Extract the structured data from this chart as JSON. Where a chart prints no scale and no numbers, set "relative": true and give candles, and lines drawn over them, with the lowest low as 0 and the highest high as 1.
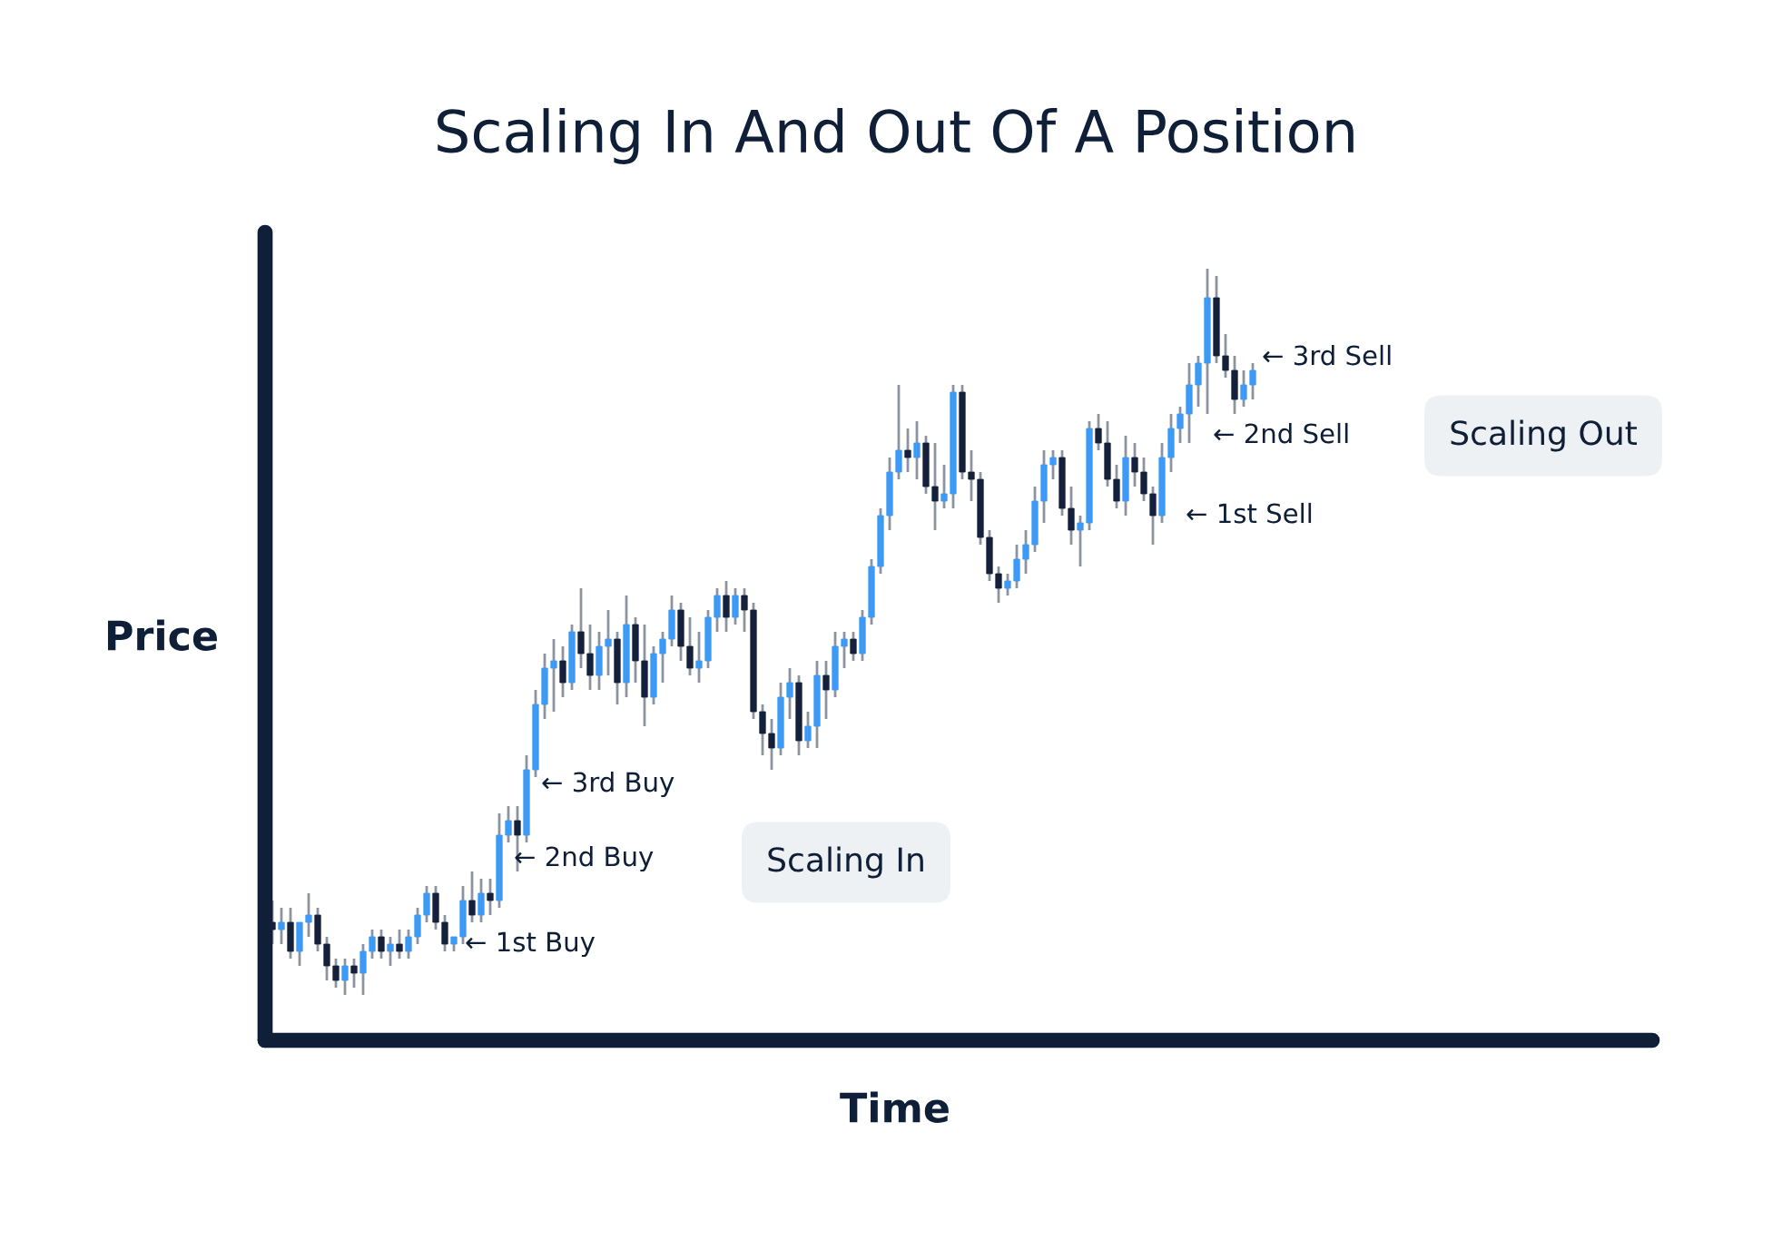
{
  "chart_data": {
    "type": "candlestick",
    "title": "Scaling In And Out Of A Position",
    "xlabel": "Time",
    "ylabel": "Price",
    "relative": true,
    "categories": [
      null,
      null,
      null,
      null,
      null,
      null,
      null,
      null,
      null,
      null,
      null,
      null,
      null,
      null,
      null,
      null,
      null,
      null,
      null,
      null,
      null,
      null,
      null,
      null,
      null,
      null,
      null,
      null,
      null,
      null,
      null,
      null,
      null,
      null,
      null,
      null,
      null,
      null,
      null,
      null,
      null,
      null,
      null,
      null,
      null,
      null,
      null,
      null,
      null,
      null,
      null,
      null,
      null,
      null,
      null,
      null,
      null,
      null,
      null,
      null,
      null,
      null,
      null,
      null,
      null,
      null,
      null,
      null,
      null,
      null,
      null,
      null,
      null,
      null,
      null,
      null,
      null,
      null,
      null,
      null,
      null,
      null,
      null,
      null,
      null,
      null,
      null,
      null,
      null,
      null,
      null,
      null,
      null,
      null,
      null,
      null,
      null,
      null,
      null,
      null,
      null,
      null,
      null,
      null,
      null,
      null,
      null,
      null,
      null
    ],
    "ohlc": [
      [
        0.1,
        0.13,
        0.07,
        0.09
      ],
      [
        0.09,
        0.12,
        0.07,
        0.1
      ],
      [
        0.1,
        0.12,
        0.05,
        0.06
      ],
      [
        0.06,
        0.1,
        0.04,
        0.1
      ],
      [
        0.1,
        0.14,
        0.08,
        0.11
      ],
      [
        0.11,
        0.12,
        0.06,
        0.07
      ],
      [
        0.07,
        0.08,
        0.02,
        0.04
      ],
      [
        0.04,
        0.05,
        0.01,
        0.02
      ],
      [
        0.02,
        0.05,
        0.0,
        0.04
      ],
      [
        0.04,
        0.05,
        0.01,
        0.03
      ],
      [
        0.03,
        0.07,
        0.0,
        0.06
      ],
      [
        0.06,
        0.09,
        0.05,
        0.08
      ],
      [
        0.08,
        0.09,
        0.05,
        0.06
      ],
      [
        0.06,
        0.08,
        0.04,
        0.07
      ],
      [
        0.07,
        0.09,
        0.05,
        0.06
      ],
      [
        0.06,
        0.09,
        0.05,
        0.08
      ],
      [
        0.08,
        0.12,
        0.07,
        0.11
      ],
      [
        0.11,
        0.15,
        0.1,
        0.14
      ],
      [
        0.14,
        0.15,
        0.09,
        0.1
      ],
      [
        0.1,
        0.11,
        0.06,
        0.07
      ],
      [
        0.07,
        0.08,
        0.06,
        0.08
      ],
      [
        0.08,
        0.15,
        0.07,
        0.13
      ],
      [
        0.13,
        0.17,
        0.1,
        0.11
      ],
      [
        0.11,
        0.16,
        0.1,
        0.14
      ],
      [
        0.14,
        0.16,
        0.11,
        0.13
      ],
      [
        0.13,
        0.25,
        0.12,
        0.22
      ],
      [
        0.22,
        0.26,
        0.21,
        0.24
      ],
      [
        0.24,
        0.26,
        0.17,
        0.22
      ],
      [
        0.22,
        0.33,
        0.21,
        0.31
      ],
      [
        0.31,
        0.42,
        0.3,
        0.4
      ],
      [
        0.4,
        0.47,
        0.38,
        0.45
      ],
      [
        0.45,
        0.49,
        0.39,
        0.46
      ],
      [
        0.46,
        0.48,
        0.41,
        0.43
      ],
      [
        0.43,
        0.51,
        0.42,
        0.5
      ],
      [
        0.5,
        0.56,
        0.45,
        0.47
      ],
      [
        0.47,
        0.51,
        0.42,
        0.44
      ],
      [
        0.44,
        0.5,
        0.42,
        0.48
      ],
      [
        0.48,
        0.53,
        0.44,
        0.49
      ],
      [
        0.49,
        0.5,
        0.4,
        0.43
      ],
      [
        0.43,
        0.55,
        0.41,
        0.51
      ],
      [
        0.51,
        0.52,
        0.43,
        0.46
      ],
      [
        0.46,
        0.51,
        0.37,
        0.41
      ],
      [
        0.41,
        0.48,
        0.4,
        0.47
      ],
      [
        0.47,
        0.5,
        0.43,
        0.49
      ],
      [
        0.49,
        0.55,
        0.48,
        0.53
      ],
      [
        0.53,
        0.54,
        0.46,
        0.48
      ],
      [
        0.48,
        0.52,
        0.44,
        0.45
      ],
      [
        0.45,
        0.5,
        0.43,
        0.46
      ],
      [
        0.46,
        0.53,
        0.45,
        0.52
      ],
      [
        0.52,
        0.56,
        0.5,
        0.55
      ],
      [
        0.55,
        0.57,
        0.5,
        0.52
      ],
      [
        0.52,
        0.56,
        0.51,
        0.55
      ],
      [
        0.55,
        0.56,
        0.5,
        0.53
      ],
      [
        0.53,
        0.54,
        0.38,
        0.39
      ],
      [
        0.39,
        0.4,
        0.33,
        0.36
      ],
      [
        0.36,
        0.38,
        0.31,
        0.34
      ],
      [
        0.34,
        0.43,
        0.33,
        0.41
      ],
      [
        0.41,
        0.45,
        0.38,
        0.43
      ],
      [
        0.43,
        0.44,
        0.33,
        0.35
      ],
      [
        0.35,
        0.39,
        0.34,
        0.37
      ],
      [
        0.37,
        0.46,
        0.34,
        0.44
      ],
      [
        0.44,
        0.46,
        0.38,
        0.42
      ],
      [
        0.42,
        0.5,
        0.41,
        0.48
      ],
      [
        0.48,
        0.5,
        0.45,
        0.49
      ],
      [
        0.49,
        0.5,
        0.46,
        0.47
      ],
      [
        0.47,
        0.53,
        0.46,
        0.52
      ],
      [
        0.52,
        0.6,
        0.51,
        0.59
      ],
      [
        0.59,
        0.67,
        0.58,
        0.66
      ],
      [
        0.66,
        0.74,
        0.64,
        0.72
      ],
      [
        0.72,
        0.84,
        0.71,
        0.75
      ],
      [
        0.75,
        0.78,
        0.72,
        0.74
      ],
      [
        0.74,
        0.79,
        0.71,
        0.76
      ],
      [
        0.76,
        0.77,
        0.69,
        0.7
      ],
      [
        0.7,
        0.76,
        0.64,
        0.68
      ],
      [
        0.68,
        0.73,
        0.67,
        0.69
      ],
      [
        0.69,
        0.84,
        0.67,
        0.83
      ],
      [
        0.83,
        0.84,
        0.71,
        0.72
      ],
      [
        0.72,
        0.75,
        0.68,
        0.71
      ],
      [
        0.71,
        0.72,
        0.62,
        0.63
      ],
      [
        0.63,
        0.64,
        0.57,
        0.58
      ],
      [
        0.58,
        0.59,
        0.54,
        0.56
      ],
      [
        0.56,
        0.58,
        0.55,
        0.57
      ],
      [
        0.57,
        0.62,
        0.56,
        0.6
      ],
      [
        0.6,
        0.64,
        0.58,
        0.62
      ],
      [
        0.62,
        0.7,
        0.61,
        0.68
      ],
      [
        0.68,
        0.75,
        0.65,
        0.73
      ],
      [
        0.73,
        0.75,
        0.71,
        0.74
      ],
      [
        0.74,
        0.75,
        0.66,
        0.67
      ],
      [
        0.67,
        0.7,
        0.62,
        0.64
      ],
      [
        0.64,
        0.66,
        0.59,
        0.65
      ],
      [
        0.65,
        0.79,
        0.64,
        0.78
      ],
      [
        0.78,
        0.8,
        0.75,
        0.76
      ],
      [
        0.76,
        0.79,
        0.7,
        0.71
      ],
      [
        0.71,
        0.73,
        0.67,
        0.68
      ],
      [
        0.68,
        0.77,
        0.66,
        0.74
      ],
      [
        0.74,
        0.76,
        0.7,
        0.72
      ],
      [
        0.72,
        0.74,
        0.68,
        0.69
      ],
      [
        0.69,
        0.7,
        0.62,
        0.66
      ],
      [
        0.66,
        0.76,
        0.65,
        0.74
      ],
      [
        0.74,
        0.8,
        0.72,
        0.78
      ],
      [
        0.78,
        0.81,
        0.76,
        0.8
      ],
      [
        0.8,
        0.87,
        0.76,
        0.84
      ],
      [
        0.84,
        0.88,
        0.81,
        0.87
      ],
      [
        0.87,
        1.0,
        0.8,
        0.96
      ],
      [
        0.96,
        0.99,
        0.87,
        0.88
      ],
      [
        0.88,
        0.91,
        0.85,
        0.86
      ],
      [
        0.86,
        0.88,
        0.8,
        0.82
      ],
      [
        0.82,
        0.86,
        0.81,
        0.84
      ],
      [
        0.84,
        0.87,
        0.82,
        0.86
      ]
    ],
    "annotations": [
      "← 1st Buy",
      "← 2nd Buy",
      "← 3rd Buy",
      "Scaling In",
      "← 1st Sell",
      "← 2nd Sell",
      "← 3rd Sell",
      "Scaling Out"
    ]
  }
}
